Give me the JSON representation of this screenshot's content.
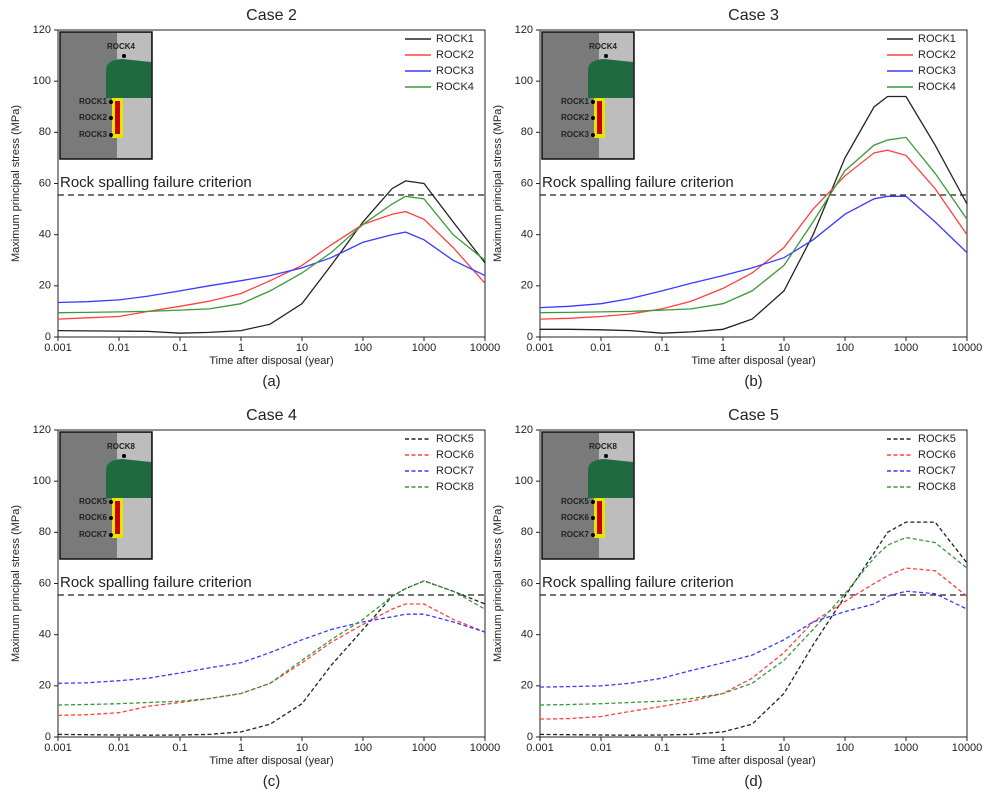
{
  "chart_data": [
    {
      "type": "line",
      "title": "Case 2",
      "caption": "(a)",
      "xlabel": "Time after disposal (year)",
      "ylabel": "Maximum principal stress (MPa)",
      "annotation": "Rock spalling failure criterion",
      "criterion_value": 55.5,
      "inset_labels": [
        "ROCK4",
        "ROCK1",
        "ROCK2",
        "ROCK3"
      ],
      "xscale": "log",
      "line_style": "solid",
      "legend": "upper right",
      "xlim": [
        0.001,
        10000
      ],
      "xticks": [
        0.001,
        0.01,
        0.1,
        1,
        10,
        100,
        1000,
        10000
      ],
      "ylim": [
        0,
        120
      ],
      "yticks": [
        0,
        20,
        40,
        60,
        80,
        100,
        120
      ],
      "x": [
        0.001,
        0.003,
        0.01,
        0.03,
        0.1,
        0.3,
        1,
        3,
        10,
        30,
        100,
        300,
        500,
        1000,
        3000,
        10000
      ],
      "series": [
        {
          "name": "ROCK1",
          "color": "#222222",
          "values": [
            2.5,
            2.4,
            2.3,
            2.2,
            1.5,
            1.8,
            2.5,
            5,
            13,
            28,
            45,
            58,
            61,
            60,
            45,
            29
          ]
        },
        {
          "name": "ROCK2",
          "color": "#ff4040",
          "values": [
            7,
            7.5,
            8,
            10,
            12,
            14,
            17,
            22,
            28,
            36,
            44,
            48,
            49,
            46,
            35,
            21
          ]
        },
        {
          "name": "ROCK3",
          "color": "#3a3aff",
          "values": [
            13.5,
            13.8,
            14.5,
            16,
            18,
            20,
            22,
            24,
            27,
            31,
            37,
            40,
            41,
            38,
            30,
            24
          ]
        },
        {
          "name": "ROCK4",
          "color": "#3a9a3a",
          "values": [
            9.5,
            9.6,
            9.8,
            10,
            10.5,
            11,
            13,
            18,
            25,
            33,
            44,
            52,
            55,
            54,
            40,
            30
          ]
        }
      ]
    },
    {
      "type": "line",
      "title": "Case 3",
      "caption": "(b)",
      "xlabel": "Time after disposal (year)",
      "ylabel": "Maximum principal stress (MPa)",
      "annotation": "Rock spalling failure criterion",
      "criterion_value": 55.5,
      "inset_labels": [
        "ROCK4",
        "ROCK1",
        "ROCK2",
        "ROCK3"
      ],
      "xscale": "log",
      "line_style": "solid",
      "legend": "upper right",
      "xlim": [
        0.001,
        10000
      ],
      "xticks": [
        0.001,
        0.01,
        0.1,
        1,
        10,
        100,
        1000,
        10000
      ],
      "ylim": [
        0,
        120
      ],
      "yticks": [
        0,
        20,
        40,
        60,
        80,
        100,
        120
      ],
      "x": [
        0.001,
        0.003,
        0.01,
        0.03,
        0.1,
        0.3,
        1,
        3,
        10,
        30,
        100,
        300,
        500,
        1000,
        3000,
        10000
      ],
      "series": [
        {
          "name": "ROCK1",
          "color": "#222222",
          "values": [
            3,
            3,
            2.8,
            2.5,
            1.5,
            2,
            3,
            7,
            18,
            40,
            70,
            90,
            94,
            94,
            75,
            52
          ]
        },
        {
          "name": "ROCK2",
          "color": "#ff4040",
          "values": [
            7,
            7.3,
            8,
            9,
            11,
            14,
            19,
            25,
            35,
            50,
            63,
            72,
            73,
            71,
            58,
            40
          ]
        },
        {
          "name": "ROCK3",
          "color": "#3a3aff",
          "values": [
            11.5,
            12,
            13,
            15,
            18,
            21,
            24,
            27,
            31,
            38,
            48,
            54,
            55,
            55,
            45,
            33
          ]
        },
        {
          "name": "ROCK4",
          "color": "#3a9a3a",
          "values": [
            9.5,
            9.6,
            9.8,
            10,
            10.5,
            11,
            13,
            18,
            28,
            45,
            65,
            75,
            77,
            78,
            64,
            46
          ]
        }
      ]
    },
    {
      "type": "line",
      "title": "Case 4",
      "caption": "(c)",
      "xlabel": "Time after disposal (year)",
      "ylabel": "Maximum principal stress (MPa)",
      "annotation": "Rock spalling failure criterion",
      "criterion_value": 55.5,
      "inset_labels": [
        "ROCK8",
        "ROCK5",
        "ROCK6",
        "ROCK7"
      ],
      "xscale": "log",
      "line_style": "dashed",
      "legend": "upper right",
      "xlim": [
        0.001,
        10000
      ],
      "xticks": [
        0.001,
        0.01,
        0.1,
        1,
        10,
        100,
        1000,
        10000
      ],
      "ylim": [
        0,
        120
      ],
      "yticks": [
        0,
        20,
        40,
        60,
        80,
        100,
        120
      ],
      "x": [
        0.001,
        0.003,
        0.01,
        0.03,
        0.1,
        0.3,
        1,
        3,
        10,
        30,
        100,
        300,
        500,
        1000,
        3000,
        10000
      ],
      "series": [
        {
          "name": "ROCK5",
          "color": "#222222",
          "values": [
            1,
            0.9,
            0.8,
            0.7,
            0.8,
            1,
            2,
            5,
            13,
            28,
            42,
            55,
            58,
            61,
            57,
            52
          ]
        },
        {
          "name": "ROCK6",
          "color": "#ff4040",
          "values": [
            8.5,
            8.7,
            9.5,
            12,
            13.5,
            15,
            17,
            21,
            29,
            37,
            44,
            50,
            52,
            52,
            46,
            41
          ]
        },
        {
          "name": "ROCK7",
          "color": "#3a3aff",
          "values": [
            21,
            21.2,
            22,
            23,
            25,
            27,
            29,
            33,
            38,
            42,
            45,
            47,
            48,
            48,
            45,
            41
          ]
        },
        {
          "name": "ROCK8",
          "color": "#3a9a3a",
          "values": [
            12.5,
            12.7,
            13,
            13.5,
            14,
            15,
            17,
            21,
            30,
            38,
            46,
            55,
            58,
            61,
            57,
            50
          ]
        }
      ]
    },
    {
      "type": "line",
      "title": "Case 5",
      "caption": "(d)",
      "xlabel": "Time after disposal (year)",
      "ylabel": "Maximum principal stress (MPa)",
      "annotation": "Rock spalling failure criterion",
      "criterion_value": 55.5,
      "inset_labels": [
        "ROCK8",
        "ROCK5",
        "ROCK6",
        "ROCK7"
      ],
      "xscale": "log",
      "line_style": "dashed",
      "legend": "upper right",
      "xlim": [
        0.001,
        10000
      ],
      "xticks": [
        0.001,
        0.01,
        0.1,
        1,
        10,
        100,
        1000,
        10000
      ],
      "ylim": [
        0,
        120
      ],
      "yticks": [
        0,
        20,
        40,
        60,
        80,
        100,
        120
      ],
      "x": [
        0.001,
        0.003,
        0.01,
        0.03,
        0.1,
        0.3,
        1,
        3,
        10,
        30,
        100,
        300,
        500,
        1000,
        3000,
        10000
      ],
      "series": [
        {
          "name": "ROCK5",
          "color": "#222222",
          "values": [
            1,
            0.9,
            0.8,
            0.7,
            0.8,
            1,
            2,
            5,
            17,
            36,
            55,
            72,
            80,
            84,
            84,
            68
          ]
        },
        {
          "name": "ROCK6",
          "color": "#ff4040",
          "values": [
            7,
            7.2,
            8,
            10,
            12,
            14,
            17,
            23,
            33,
            45,
            53,
            60,
            63,
            66,
            65,
            55
          ]
        },
        {
          "name": "ROCK7",
          "color": "#3a3aff",
          "values": [
            19.5,
            19.7,
            20,
            21,
            23,
            26,
            29,
            32,
            38,
            45,
            49,
            52,
            55,
            57,
            56,
            50
          ]
        },
        {
          "name": "ROCK8",
          "color": "#3a9a3a",
          "values": [
            12.5,
            12.7,
            13,
            13.5,
            14,
            15,
            17,
            21,
            30,
            42,
            56,
            70,
            75,
            78,
            76,
            66
          ]
        }
      ]
    }
  ]
}
